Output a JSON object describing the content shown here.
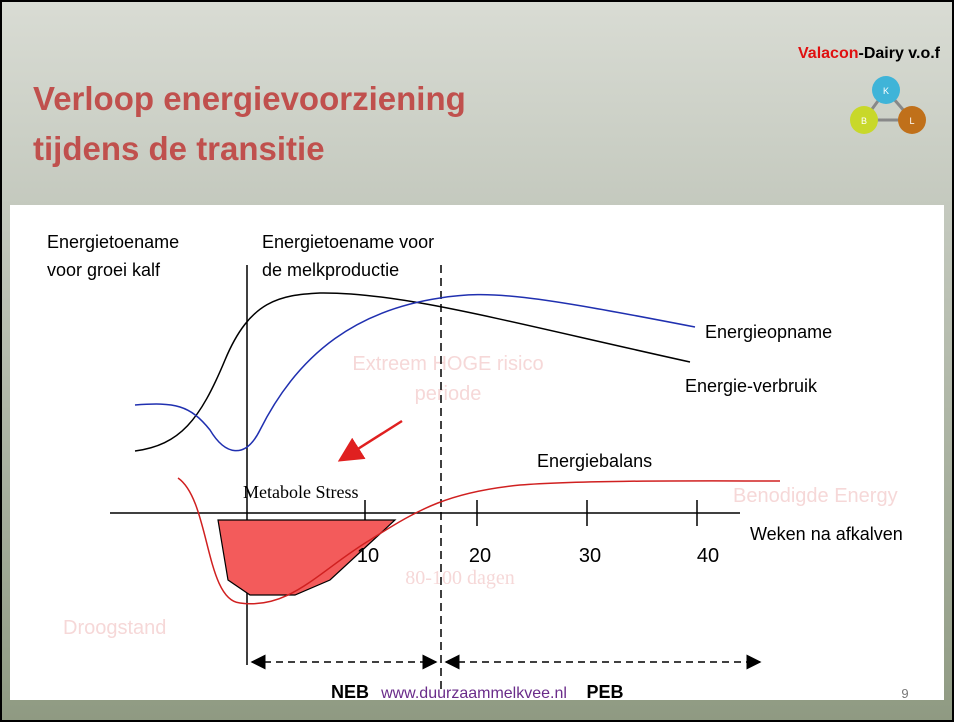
{
  "header": {
    "title_lines": [
      "Verloop energievoorziening",
      "tijdens de transitie"
    ],
    "brand": {
      "name": "Valacon",
      "suffix": "-Dairy v.o.f"
    },
    "logo_letters": [
      "K",
      "B",
      "L"
    ]
  },
  "diagram": {
    "calf_label": [
      "Energietoename",
      "voor groei kalf"
    ],
    "milk_label": [
      "Energietoename voor",
      "de melkproductie"
    ],
    "intake": "Energieopname",
    "usage": "Energie-verbruik",
    "balance": "Energiebalans",
    "stress": "Metabole Stress",
    "risk": [
      "Extreem HOGE risico",
      "periode"
    ],
    "required": "Benodigde Energy",
    "days": "80-100 dagen",
    "dry": "Droogstand",
    "axis": {
      "label": "Weken na afkalven",
      "ticks": [
        "10",
        "20",
        "30",
        "40"
      ]
    },
    "phases": [
      "NEB",
      "PEB"
    ]
  },
  "footer": {
    "url": "www.duurzaammelkvee.nl",
    "page": "9"
  }
}
